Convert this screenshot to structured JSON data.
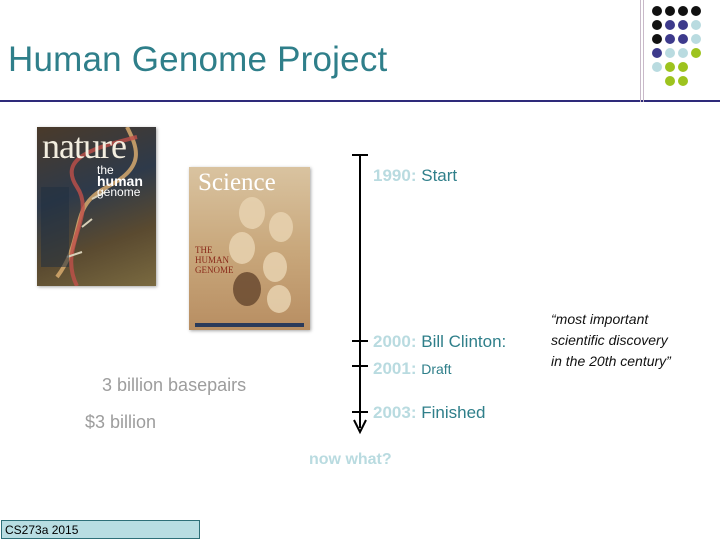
{
  "slide": {
    "title": "Human Genome Project",
    "footer": "CS273a 2015"
  },
  "covers": {
    "nature": {
      "masthead": "nature",
      "line1": "the",
      "line2": "human",
      "line3": "genome"
    },
    "science": {
      "masthead": "Science",
      "line1": "THE",
      "line2": "HUMAN",
      "line3": "GENOME"
    }
  },
  "timeline": {
    "events": [
      {
        "year": "1990",
        "sep": ":",
        "label": "Start"
      },
      {
        "year": "2000",
        "sep": ":",
        "label": "Bill Clinton:"
      },
      {
        "year": "2001",
        "sep": ":",
        "label": "Draft"
      },
      {
        "year": "2003",
        "sep": ":",
        "label": "Finished"
      }
    ],
    "after": "now what?"
  },
  "facts": {
    "basepairs": "3 billion basepairs",
    "cost": "$3 billion"
  },
  "quote": {
    "line1": "“most important",
    "line2": "scientific discovery",
    "line3": "in the 20th century”"
  },
  "colors": {
    "title": "#2f7f8a",
    "year": "#b9dbe0",
    "rule": "#2e2a7a",
    "footer_bg": "#b8dde2"
  },
  "decoration": {
    "dot_grid": [
      [
        "#111111",
        "#111111",
        "#111111",
        "#111111"
      ],
      [
        "#111111",
        "#3d3a8c",
        "#3d3a8c",
        "#b9dbe0"
      ],
      [
        "#111111",
        "#3d3a8c",
        "#3d3a8c",
        "#b9dbe0"
      ],
      [
        "#3d3a8c",
        "#b9dbe0",
        "#b9dbe0",
        "#9dc31e"
      ],
      [
        "#b9dbe0",
        "#9dc31e",
        "#9dc31e",
        "#ffffff"
      ],
      [
        "#ffffff",
        "#9dc31e",
        "#9dc31e",
        "#ffffff"
      ]
    ]
  }
}
